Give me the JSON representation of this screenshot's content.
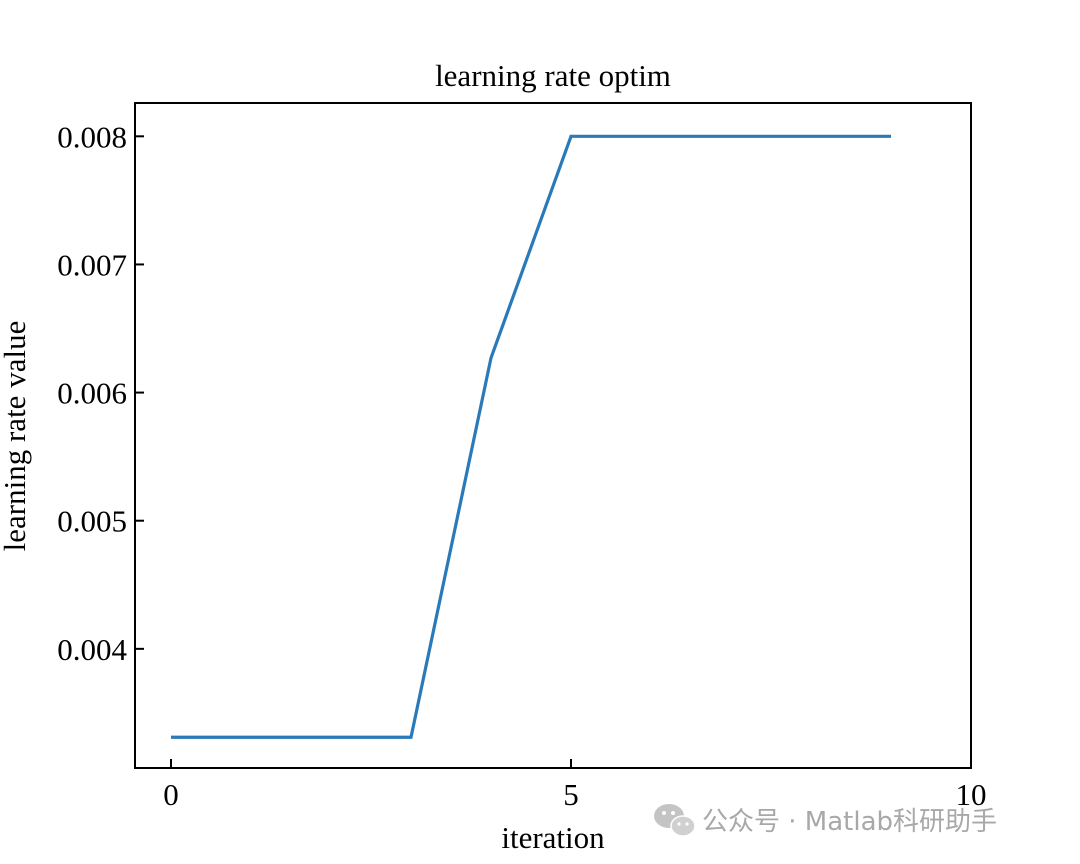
{
  "chart_data": {
    "type": "line",
    "title": "learning rate optim",
    "xlabel": "iteration",
    "ylabel": "learning rate value",
    "xlim": [
      -0.45,
      10
    ],
    "ylim": [
      0.00307,
      0.00826
    ],
    "xticks": [
      0,
      5,
      10
    ],
    "xtick_labels": [
      "0",
      "5",
      "10"
    ],
    "yticks": [
      0.004,
      0.005,
      0.006,
      0.007,
      0.008
    ],
    "ytick_labels": [
      "0.004",
      "0.005",
      "0.006",
      "0.007",
      "0.008"
    ],
    "grid": false,
    "legend": "none",
    "series": [
      {
        "x": [
          0,
          1,
          2,
          3,
          4,
          5,
          6,
          7,
          8,
          9
        ],
        "values": [
          0.00331,
          0.00331,
          0.00331,
          0.00331,
          0.00627,
          0.008,
          0.008,
          0.008,
          0.008,
          0.008
        ],
        "color": "#2a7ab9"
      }
    ]
  },
  "watermark": {
    "text": "公众号 · Matlab科研助手",
    "icon": "wechat-icon"
  }
}
